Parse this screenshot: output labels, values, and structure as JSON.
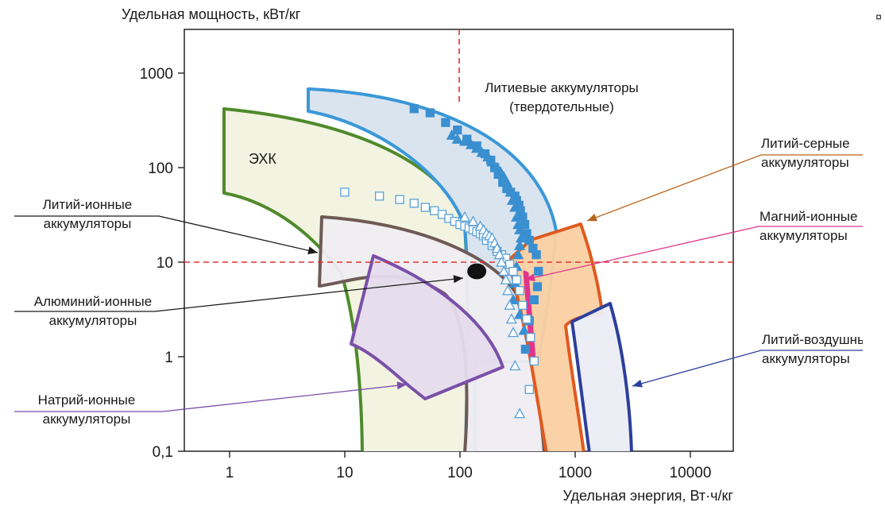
{
  "chart_data": {
    "type": "scatter",
    "title": "",
    "xlabel": "Удельная энергия, Вт·ч/кг",
    "ylabel": "Удельная мощность, кВт/кг",
    "x_scale": "log",
    "y_scale": "log",
    "xlim": [
      0.4,
      30000
    ],
    "ylim": [
      0.1,
      4000
    ],
    "x_ticks": [
      "1",
      "10",
      "100",
      "1000",
      "10000"
    ],
    "y_ticks": [
      "0,1",
      "1",
      "10",
      "100",
      "1000"
    ],
    "grid": false,
    "regions": [
      {
        "label": "ЭХК",
        "color": "#4f8a2b",
        "fill": "#f1f3df"
      },
      {
        "label_lines": [
          "Литиевые аккумуляторы",
          "(твердотельные)"
        ],
        "color": "#3a98d8",
        "fill": "#d8e3ee"
      },
      {
        "label_lines": [
          "Литий-ионные",
          "аккумуляторы"
        ],
        "color": "#6e5a55",
        "fill": "#efedf1"
      },
      {
        "label_lines": [
          "Натрий-ионные",
          "аккумуляторы"
        ],
        "color": "#7a4fa8",
        "fill": "#e5dced"
      },
      {
        "label_lines": [
          "Литий-серные",
          "аккумуляторы"
        ],
        "color": "#e05a20",
        "fill": "#fbd0a2"
      },
      {
        "label_lines": [
          "Литий-воздушные",
          "аккумуляторы"
        ],
        "color": "#2b3f9c",
        "fill": "#ecedf4"
      },
      {
        "label_lines": [
          "Магний-ионные",
          "аккумуляторы"
        ],
        "color": "#e0358c"
      }
    ],
    "point": {
      "label_lines": [
        "Алюминий-ионные",
        "аккумуляторы"
      ],
      "x": 140,
      "y": 8,
      "color": "#111111"
    },
    "reference_lines": {
      "x": 100,
      "y": 10,
      "color": "#e03030",
      "style": "dashed"
    },
    "series": [
      {
        "marker": "square",
        "color": "#3a8fd0",
        "filled": true,
        "x": [
          40,
          55,
          75,
          95,
          115,
          140,
          165,
          185,
          200,
          215,
          235,
          255,
          275,
          300,
          310,
          325,
          335,
          350,
          365,
          380,
          400,
          430,
          460,
          480,
          470,
          440,
          400,
          370
        ],
        "y": [
          420,
          380,
          300,
          250,
          200,
          170,
          140,
          120,
          100,
          85,
          70,
          60,
          55,
          50,
          45,
          40,
          35,
          30,
          25,
          20,
          17,
          14,
          12,
          8,
          5.5,
          4,
          2.4,
          1.2
        ]
      },
      {
        "marker": "triangle",
        "color": "#3a8fd0",
        "filled": true,
        "x": [
          85,
          95,
          110,
          125,
          140,
          155,
          175,
          190,
          210,
          225,
          240,
          255,
          265,
          275,
          285,
          300,
          310,
          320,
          330,
          340,
          330,
          320,
          310,
          300,
          290,
          330,
          360
        ],
        "y": [
          220,
          200,
          190,
          175,
          160,
          145,
          130,
          115,
          100,
          90,
          80,
          70,
          62,
          55,
          45,
          38,
          30,
          25,
          22,
          18,
          15,
          12,
          9,
          6,
          4,
          2.8,
          1.9
        ]
      },
      {
        "marker": "square",
        "color": "#5aa0d8",
        "filled": false,
        "x": [
          10,
          20,
          30,
          40,
          50,
          60,
          70,
          80,
          90,
          100,
          110,
          120,
          130,
          140,
          150,
          160,
          170,
          190,
          210,
          230,
          250,
          270,
          290,
          310,
          330,
          350,
          380,
          410,
          440,
          400
        ],
        "y": [
          55,
          50,
          46,
          42,
          38,
          35,
          32,
          29,
          27,
          25,
          24,
          23,
          22,
          21,
          20,
          19,
          17,
          15,
          13,
          12,
          11,
          9.5,
          8,
          6.5,
          5,
          3.5,
          2.5,
          1.6,
          0.9,
          0.45
        ]
      },
      {
        "marker": "triangle",
        "color": "#5aa0d8",
        "filled": false,
        "x": [
          110,
          130,
          150,
          160,
          170,
          180,
          190,
          200,
          210,
          220,
          230,
          240,
          250,
          260,
          270,
          280,
          290,
          300,
          330
        ],
        "y": [
          30,
          27,
          24,
          22,
          20,
          19,
          18,
          16,
          14,
          12,
          10,
          8,
          6.5,
          5,
          3.5,
          2.5,
          1.8,
          0.8,
          0.25
        ]
      }
    ]
  }
}
